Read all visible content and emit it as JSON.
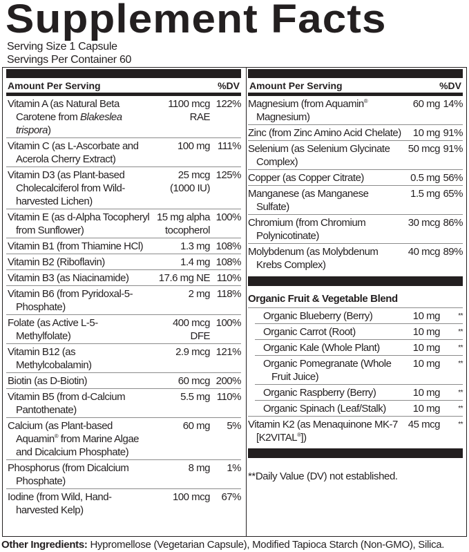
{
  "title": "Supplement Facts",
  "serving_size": "Serving Size 1 Capsule",
  "servings_per_container": "Servings Per Container 60",
  "header": {
    "amount": "Amount Per Serving",
    "dv": "%DV"
  },
  "left_rows": [
    {
      "name": [
        {
          "t": "Vitamin A (as Natural Beta Carotene from "
        },
        {
          "t": "Blakeslea trispora",
          "i": true
        },
        {
          "t": ")"
        }
      ],
      "amount": "1100 mcg RAE",
      "dv": "122%"
    },
    {
      "name": [
        {
          "t": "Vitamin C (as L-Ascorbate and Acerola Cherry Extract)"
        }
      ],
      "amount": "100 mg",
      "dv": "111%"
    },
    {
      "name": [
        {
          "t": "Vitamin D3 (as Plant-based Cholecalciferol from Wild-harvested Lichen)"
        }
      ],
      "amount": "25 mcg (1000 IU)",
      "dv": "125%"
    },
    {
      "name": [
        {
          "t": "Vitamin E (as d-Alpha Tocopheryl from Sunflower)"
        }
      ],
      "amount": "15 mg alpha tocopherol",
      "dv": "100%"
    },
    {
      "name": [
        {
          "t": "Vitamin B1 (from Thiamine HCl)"
        }
      ],
      "amount": "1.3 mg",
      "dv": "108%"
    },
    {
      "name": [
        {
          "t": "Vitamin B2 (Riboflavin)"
        }
      ],
      "amount": "1.4 mg",
      "dv": "108%"
    },
    {
      "name": [
        {
          "t": "Vitamin B3 (as Niacinamide)"
        }
      ],
      "amount": "17.6 mg NE",
      "dv": "110%"
    },
    {
      "name": [
        {
          "t": "Vitamin B6 (from Pyridoxal-5-Phosphate)"
        }
      ],
      "amount": "2 mg",
      "dv": "118%"
    },
    {
      "name": [
        {
          "t": "Folate (as Active L-5-Methylfolate)"
        }
      ],
      "amount": "400 mcg DFE",
      "dv": "100%"
    },
    {
      "name": [
        {
          "t": "Vitamin B12 (as Methylcobalamin)"
        }
      ],
      "amount": "2.9 mcg",
      "dv": "121%"
    },
    {
      "name": [
        {
          "t": "Biotin (as D-Biotin)"
        }
      ],
      "amount": "60 mcg",
      "dv": "200%"
    },
    {
      "name": [
        {
          "t": "Vitamin B5 (from d-Calcium Pantothenate)"
        }
      ],
      "amount": "5.5 mg",
      "dv": "110%"
    },
    {
      "name": [
        {
          "t": "Calcium (as Plant-based Aquamin"
        },
        {
          "t": "®",
          "sup": true
        },
        {
          "t": " from Marine Algae and Dicalcium Phosphate)"
        }
      ],
      "amount": "60 mg",
      "dv": "5%"
    },
    {
      "name": [
        {
          "t": "Phosphorus (from Dicalcium Phosphate)"
        }
      ],
      "amount": "8 mg",
      "dv": "1%"
    },
    {
      "name": [
        {
          "t": "Iodine (from Wild, Hand-harvested Kelp)"
        }
      ],
      "amount": "100 mcg",
      "dv": "67%"
    }
  ],
  "right_rows": [
    {
      "name": [
        {
          "t": "Magnesium (from Aquamin"
        },
        {
          "t": "®",
          "sup": true
        },
        {
          "t": " Magnesium)"
        }
      ],
      "amount": "60 mg",
      "dv": "14%"
    },
    {
      "name": [
        {
          "t": "Zinc (from Zinc Amino Acid Chelate)"
        }
      ],
      "amount": "10 mg",
      "dv": "91%"
    },
    {
      "name": [
        {
          "t": "Selenium (as Selenium Glycinate Complex)"
        }
      ],
      "amount": "50 mcg",
      "dv": "91%"
    },
    {
      "name": [
        {
          "t": "Copper (as Copper Citrate)"
        }
      ],
      "amount": "0.5 mg",
      "dv": "56%"
    },
    {
      "name": [
        {
          "t": "Manganese (as Manganese Sulfate)"
        }
      ],
      "amount": "1.5 mg",
      "dv": "65%"
    },
    {
      "name": [
        {
          "t": "Chromium (from Chromium Polynicotinate)"
        }
      ],
      "amount": "30 mcg",
      "dv": "86%"
    },
    {
      "name": [
        {
          "t": "Molybdenum (as Molybdenum Krebs Complex)"
        }
      ],
      "amount": "40 mcg",
      "dv": "89%"
    }
  ],
  "blend": {
    "title": "Organic Fruit & Vegetable Blend",
    "rows": [
      {
        "name": [
          {
            "t": "Organic Blueberry (Berry)"
          }
        ],
        "amount": "10 mg",
        "dv": "**"
      },
      {
        "name": [
          {
            "t": "Organic Carrot (Root)"
          }
        ],
        "amount": "10 mg",
        "dv": "**"
      },
      {
        "name": [
          {
            "t": "Organic Kale (Whole Plant)"
          }
        ],
        "amount": "10 mg",
        "dv": "**"
      },
      {
        "name": [
          {
            "t": "Organic Pomegranate (Whole Fruit Juice)"
          }
        ],
        "amount": "10 mg",
        "dv": "**"
      },
      {
        "name": [
          {
            "t": "Organic Raspberry (Berry)"
          }
        ],
        "amount": "10 mg",
        "dv": "**"
      },
      {
        "name": [
          {
            "t": "Organic Spinach (Leaf/Stalk)"
          }
        ],
        "amount": "10 mg",
        "dv": "**"
      }
    ]
  },
  "k2_rows": [
    {
      "name": [
        {
          "t": "Vitamin K2 (as Menaquinone MK-7 [K2VITAL"
        },
        {
          "t": "®",
          "sup": true
        },
        {
          "t": "])"
        }
      ],
      "amount": "45 mcg",
      "dv": "**"
    }
  ],
  "footnote": "**Daily Value (DV) not established.",
  "other_ingredients": {
    "label": "Other Ingredients:",
    "text": " Hypromellose (Vegetarian Capsule), Modified Tapioca Starch (Non-GMO), Silica."
  }
}
